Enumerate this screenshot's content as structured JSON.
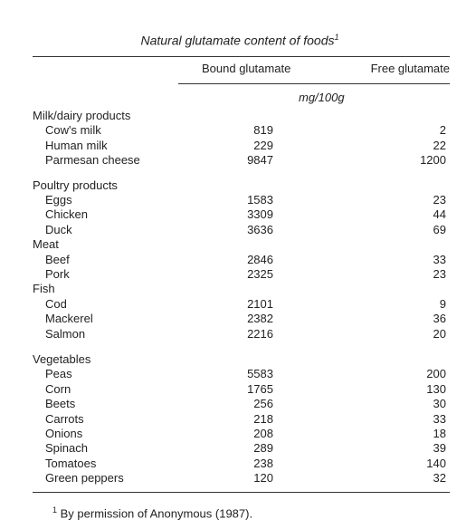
{
  "title": {
    "text": "Natural glutamate content of foods",
    "note_mark": "1"
  },
  "header": {
    "columns": [
      "Bound glutamate",
      "Free glutamate"
    ],
    "unit": "mg/100g"
  },
  "groups": [
    {
      "name": "Milk/dairy products",
      "rows": [
        [
          "Cow's milk",
          819,
          2
        ],
        [
          "Human milk",
          229,
          22
        ],
        [
          "Parmesan cheese",
          9847,
          1200
        ]
      ]
    },
    {
      "name": "Poultry products",
      "rows": [
        [
          "Eggs",
          1583,
          23
        ],
        [
          "Chicken",
          3309,
          44
        ],
        [
          "Duck",
          3636,
          69
        ]
      ]
    },
    {
      "name": "Meat",
      "rows": [
        [
          "Beef",
          2846,
          33
        ],
        [
          "Pork",
          2325,
          23
        ]
      ]
    },
    {
      "name": "Fish",
      "rows": [
        [
          "Cod",
          2101,
          9
        ],
        [
          "Mackerel",
          2382,
          36
        ],
        [
          "Salmon",
          2216,
          20
        ]
      ]
    },
    {
      "name": "Vegetables",
      "rows": [
        [
          "Peas",
          5583,
          200
        ],
        [
          "Corn",
          1765,
          130
        ],
        [
          "Beets",
          256,
          30
        ],
        [
          "Carrots",
          218,
          33
        ],
        [
          "Onions",
          208,
          18
        ],
        [
          "Spinach",
          289,
          39
        ],
        [
          "Tomatoes",
          238,
          140
        ],
        [
          "Green peppers",
          120,
          32
        ]
      ]
    }
  ],
  "footnote": {
    "mark": "1",
    "text": "By permission of Anonymous (1987)."
  }
}
